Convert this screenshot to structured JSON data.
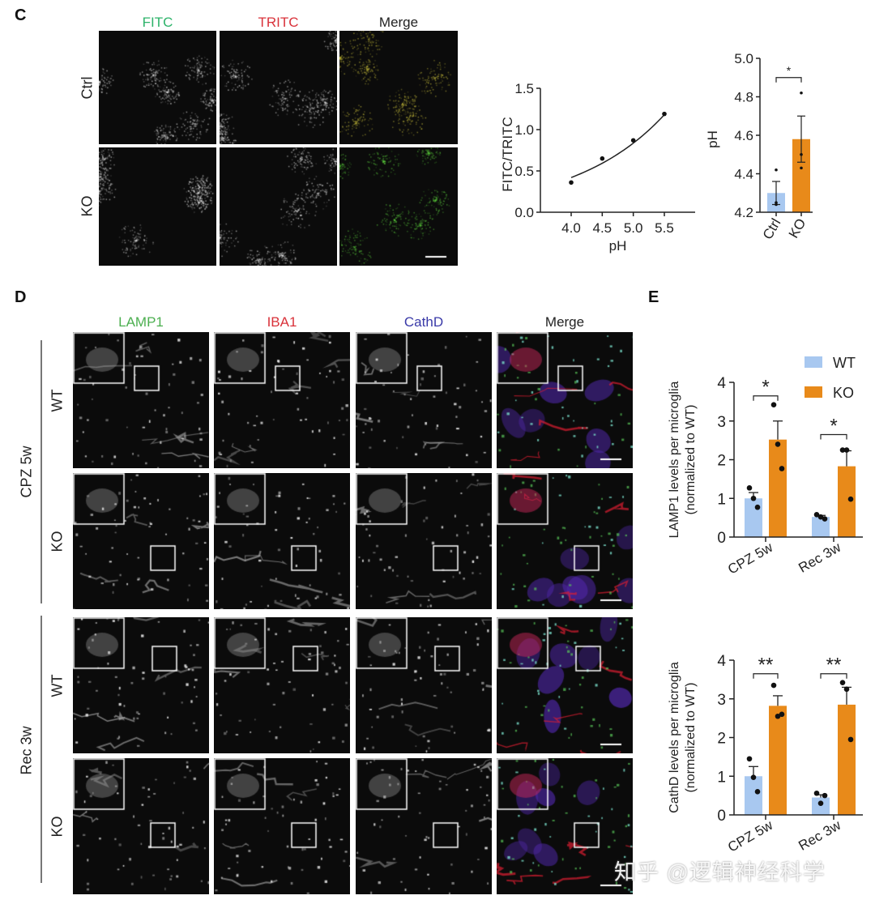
{
  "panel_c": {
    "label": "C",
    "columns": [
      {
        "label": "FITC",
        "color": "#2db36a"
      },
      {
        "label": "TRITC",
        "color": "#d9323a"
      },
      {
        "label": "Merge",
        "color": "#222222"
      }
    ],
    "rows": [
      "Ctrl",
      "KO"
    ]
  },
  "panel_d": {
    "label": "D",
    "columns": [
      {
        "label": "LAMP1",
        "color": "#4caf50"
      },
      {
        "label": "IBA1",
        "color": "#d9323a"
      },
      {
        "label": "CathD",
        "color": "#3a3aa8"
      },
      {
        "label": "Merge",
        "color": "#222222"
      }
    ],
    "groups": [
      {
        "label": "CPZ 5w",
        "rows": [
          "WT",
          "KO"
        ]
      },
      {
        "label": "Rec 3w",
        "rows": [
          "WT",
          "KO"
        ]
      }
    ]
  },
  "panel_e": {
    "label": "E"
  },
  "watermark": "知乎 @逻辑神经科学",
  "colors": {
    "wt": "#a8c8f0",
    "ko": "#e88a1a"
  },
  "chart_data": [
    {
      "type": "scatter",
      "panel": "C",
      "xlabel": "pH",
      "ylabel": "FITC/TRITC",
      "x_ticks": [
        "4.0",
        "4.5",
        "5.0",
        "5.5"
      ],
      "y_ticks": [
        "0.0",
        "0.5",
        "1.0",
        "1.5"
      ],
      "xlim": [
        3.5,
        6.0
      ],
      "ylim": [
        0,
        1.5
      ],
      "points": [
        {
          "x": 4.0,
          "y": 0.36
        },
        {
          "x": 4.5,
          "y": 0.65
        },
        {
          "x": 5.0,
          "y": 0.87
        },
        {
          "x": 5.5,
          "y": 1.19
        }
      ],
      "fit": "exponential curve"
    },
    {
      "type": "bar",
      "panel": "C",
      "ylabel": "pH",
      "categories": [
        "Ctrl",
        "KO"
      ],
      "values": [
        4.3,
        4.58
      ],
      "errors": [
        0.06,
        0.12
      ],
      "points": [
        [
          4.42,
          4.25,
          4.24
        ],
        [
          4.82,
          4.5,
          4.43
        ]
      ],
      "y_ticks": [
        "4.2",
        "4.4",
        "4.6",
        "4.8",
        "5.0"
      ],
      "ylim": [
        4.2,
        5.0
      ],
      "significance": "*"
    },
    {
      "type": "bar",
      "panel": "E",
      "ylabel": "LAMP1 levels per microglia",
      "ylabel2": "(normalized to WT)",
      "categories": [
        "CPZ 5w",
        "Rec 3w"
      ],
      "legend": [
        "WT",
        "KO"
      ],
      "legend_position": "top-right",
      "series": [
        {
          "name": "WT",
          "values": [
            1.0,
            0.52
          ],
          "errors": [
            0.15,
            0.04
          ],
          "points": [
            [
              1.27,
              1.0,
              0.77
            ],
            [
              0.58,
              0.52,
              0.47
            ]
          ]
        },
        {
          "name": "KO",
          "values": [
            2.52,
            1.83
          ],
          "errors": [
            0.48,
            0.4
          ],
          "points": [
            [
              3.42,
              2.4,
              1.77
            ],
            [
              2.25,
              2.25,
              0.98
            ]
          ]
        }
      ],
      "y_ticks": [
        "0",
        "1",
        "2",
        "3",
        "4"
      ],
      "ylim": [
        0,
        4
      ],
      "significance": [
        "*",
        "*"
      ]
    },
    {
      "type": "bar",
      "panel": "E",
      "ylabel": "CathD levels per microglia",
      "ylabel2": "(normalized to WT)",
      "categories": [
        "CPZ 5w",
        "Rec 3w"
      ],
      "series": [
        {
          "name": "WT",
          "values": [
            1.0,
            0.45
          ],
          "errors": [
            0.25,
            0.07
          ],
          "points": [
            [
              1.45,
              0.97,
              0.6
            ],
            [
              0.56,
              0.3,
              0.5
            ]
          ]
        },
        {
          "name": "KO",
          "values": [
            2.82,
            2.85
          ],
          "errors": [
            0.26,
            0.45
          ],
          "points": [
            [
              3.35,
              2.55,
              2.6
            ],
            [
              3.42,
              3.25,
              1.95
            ]
          ]
        }
      ],
      "y_ticks": [
        "0",
        "1",
        "2",
        "3",
        "4"
      ],
      "ylim": [
        0,
        4
      ],
      "significance": [
        "**",
        "**"
      ]
    }
  ]
}
